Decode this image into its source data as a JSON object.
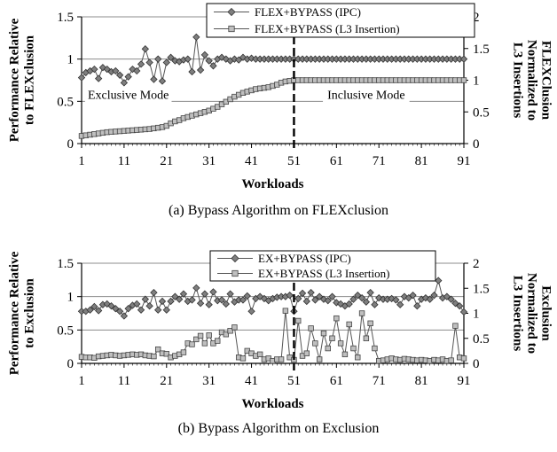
{
  "chart_data": [
    {
      "id": "a",
      "type": "line",
      "caption": "(a) Bypass Algorithm on FLEXclusion",
      "xlabel": "Workloads",
      "ylabel_left": [
        "Performance Relative",
        "to FLEXclusion"
      ],
      "ylabel_right": [
        "L3 Insertions",
        "Normalized to",
        "FLEXClusion"
      ],
      "x_ticks": [
        "1",
        "11",
        "21",
        "31",
        "41",
        "51",
        "61",
        "71",
        "81",
        "91"
      ],
      "y_left_ticks": [
        "0",
        "0.5",
        "1",
        "1.5"
      ],
      "y_right_ticks": [
        "0",
        "0.5",
        "1",
        "1.5",
        "2"
      ],
      "ylim_left": [
        0,
        1.5
      ],
      "ylim_right": [
        0,
        2
      ],
      "xlim": [
        1,
        91
      ],
      "grid": "horizontal",
      "legend_position": "top-center",
      "divider_x": 51,
      "annotations": [
        {
          "text": "Exclusive Mode",
          "x": 12,
          "y": 0.53
        },
        {
          "text": "Inclusive Mode",
          "x": 68,
          "y": 0.53
        }
      ],
      "series": [
        {
          "name": "FLEX+BYPASS (IPC)",
          "axis": "left",
          "marker": "diamond",
          "color": "#7f7f7f",
          "values": [
            0.78,
            0.84,
            0.86,
            0.88,
            0.77,
            0.9,
            0.88,
            0.85,
            0.86,
            0.81,
            0.72,
            0.79,
            0.88,
            0.86,
            0.94,
            1.12,
            0.96,
            0.76,
            1.0,
            0.74,
            0.96,
            1.02,
            0.98,
            0.97,
            0.99,
            1.0,
            0.85,
            1.26,
            0.87,
            1.05,
            0.98,
            0.92,
            1.0,
            1.02,
            1.0,
            0.98,
            1.0,
            0.99,
            1.02,
            1.0,
            1.01,
            1.0,
            1.0,
            1.0,
            1.0,
            1.0,
            1.0,
            1.0,
            1.0,
            1.0,
            1.0,
            1.0,
            1.0,
            1.0,
            1.0,
            1.0,
            1.0,
            1.0,
            1.0,
            1.0,
            1.0,
            1.0,
            1.0,
            1.0,
            1.0,
            1.0,
            1.0,
            1.0,
            1.0,
            1.0,
            1.0,
            1.0,
            1.0,
            1.0,
            1.0,
            1.0,
            1.0,
            1.0,
            1.0,
            1.0,
            1.0,
            1.0,
            1.0,
            1.0,
            1.0,
            1.0,
            1.0,
            1.0,
            1.0,
            1.0,
            1.0
          ]
        },
        {
          "name": "FLEX+BYPASS (L3 Insertion)",
          "axis": "right",
          "marker": "square",
          "color": "#bfbfbf",
          "values": [
            0.12,
            0.13,
            0.14,
            0.15,
            0.16,
            0.17,
            0.18,
            0.185,
            0.19,
            0.195,
            0.2,
            0.205,
            0.21,
            0.215,
            0.22,
            0.225,
            0.23,
            0.24,
            0.25,
            0.26,
            0.28,
            0.32,
            0.35,
            0.37,
            0.4,
            0.42,
            0.44,
            0.46,
            0.48,
            0.5,
            0.52,
            0.55,
            0.58,
            0.62,
            0.66,
            0.7,
            0.74,
            0.77,
            0.8,
            0.82,
            0.84,
            0.86,
            0.87,
            0.88,
            0.89,
            0.91,
            0.93,
            0.96,
            0.98,
            0.99,
            1.0,
            1.0,
            1.0,
            1.0,
            1.0,
            1.0,
            1.0,
            1.0,
            1.0,
            1.0,
            1.0,
            1.0,
            1.0,
            1.0,
            1.0,
            1.0,
            1.0,
            1.0,
            1.0,
            1.0,
            1.0,
            1.0,
            1.0,
            1.0,
            1.0,
            1.0,
            1.0,
            1.0,
            1.0,
            1.0,
            1.0,
            1.0,
            1.0,
            1.0,
            1.0,
            1.0,
            1.0,
            1.0,
            1.0,
            1.0,
            1.0
          ]
        }
      ]
    },
    {
      "id": "b",
      "type": "line",
      "caption": "(b) Bypass Algorithm on Exclusion",
      "xlabel": "Workloads",
      "ylabel_left": [
        "Performance Relative",
        "to Exclusion"
      ],
      "ylabel_right": [
        "L3 Insertions",
        "Normalized to",
        "Exclusion"
      ],
      "x_ticks": [
        "1",
        "11",
        "21",
        "31",
        "41",
        "51",
        "61",
        "71",
        "81",
        "91"
      ],
      "y_left_ticks": [
        "0",
        "0.5",
        "1",
        "1.5"
      ],
      "y_right_ticks": [
        "0",
        "0.5",
        "1",
        "1.5",
        "2"
      ],
      "ylim_left": [
        0,
        1.5
      ],
      "ylim_right": [
        0,
        2
      ],
      "xlim": [
        1,
        91
      ],
      "grid": "horizontal",
      "legend_position": "top-center",
      "divider_x": 51,
      "annotations": [],
      "series": [
        {
          "name": "EX+BYPASS (IPC)",
          "axis": "left",
          "marker": "diamond",
          "color": "#7f7f7f",
          "values": [
            0.78,
            0.78,
            0.8,
            0.85,
            0.79,
            0.88,
            0.89,
            0.86,
            0.82,
            0.78,
            0.71,
            0.82,
            0.87,
            0.89,
            0.8,
            0.96,
            0.86,
            1.06,
            0.8,
            0.93,
            0.8,
            0.93,
            1.0,
            0.96,
            1.04,
            0.93,
            0.95,
            1.13,
            0.9,
            1.04,
            0.88,
            1.07,
            0.94,
            0.95,
            0.89,
            1.04,
            0.92,
            0.95,
            0.95,
            1.01,
            0.78,
            0.97,
            1.0,
            0.97,
            0.94,
            0.97,
            0.99,
            1.0,
            1.0,
            1.02,
            0.78,
            0.97,
            1.05,
            0.93,
            1.06,
            0.95,
            1.0,
            0.96,
            0.94,
            1.0,
            0.91,
            0.89,
            0.86,
            0.89,
            0.96,
            1.02,
            0.98,
            0.92,
            1.06,
            0.88,
            0.98,
            0.96,
            0.96,
            0.97,
            0.95,
            0.88,
            1.0,
            0.98,
            1.02,
            0.86,
            0.96,
            0.98,
            0.96,
            1.02,
            1.24,
            0.98,
            1.0,
            0.96,
            0.9,
            0.86,
            0.77
          ]
        },
        {
          "name": "EX+BYPASS (L3 Insertion)",
          "axis": "right",
          "marker": "square",
          "color": "#bfbfbf",
          "values": [
            0.13,
            0.12,
            0.12,
            0.11,
            0.14,
            0.15,
            0.16,
            0.17,
            0.16,
            0.15,
            0.16,
            0.17,
            0.18,
            0.17,
            0.18,
            0.16,
            0.15,
            0.14,
            0.28,
            0.2,
            0.19,
            0.12,
            0.15,
            0.18,
            0.22,
            0.4,
            0.38,
            0.48,
            0.55,
            0.4,
            0.56,
            0.4,
            0.45,
            0.62,
            0.58,
            0.65,
            0.72,
            0.12,
            0.1,
            0.25,
            0.2,
            0.15,
            0.18,
            0.08,
            0.1,
            0.05,
            0.08,
            0.08,
            1.05,
            0.12,
            0.07,
            0.85,
            0.15,
            0.2,
            0.7,
            0.4,
            0.08,
            0.6,
            0.3,
            0.5,
            0.9,
            0.4,
            0.18,
            0.78,
            0.3,
            0.12,
            1.0,
            0.5,
            0.8,
            0.3,
            0.05,
            0.06,
            0.08,
            0.1,
            0.08,
            0.07,
            0.09,
            0.08,
            0.07,
            0.06,
            0.07,
            0.06,
            0.05,
            0.07,
            0.06,
            0.08,
            0.05,
            0.06,
            0.75,
            0.12,
            0.1
          ]
        }
      ]
    }
  ]
}
